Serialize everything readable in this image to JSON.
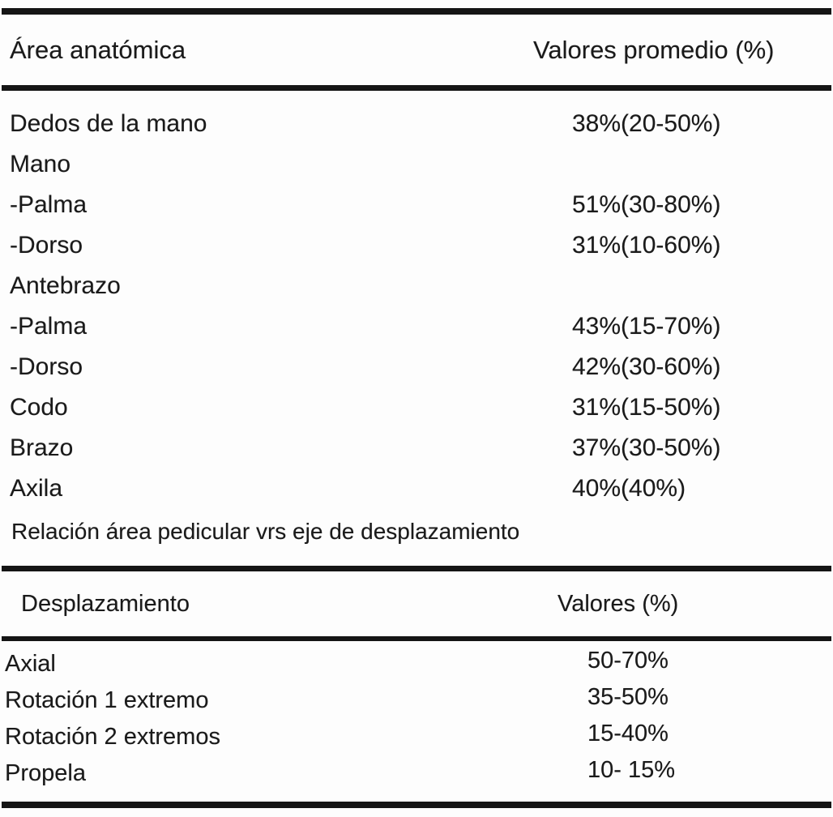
{
  "page": {
    "background_color": "#fdfdfd",
    "text_color": "#1a1a1a",
    "rule_color": "#151515"
  },
  "table1": {
    "header": {
      "col1": "Área anatómica",
      "col2": "Valores promedio (%)"
    },
    "rows": [
      {
        "label": "Dedos de la mano",
        "value": "38%(20-50%)"
      },
      {
        "label": "Mano",
        "value": ""
      },
      {
        "label": "-Palma",
        "value": "51%(30-80%)"
      },
      {
        "label": "-Dorso",
        "value": "31%(10-60%)"
      },
      {
        "label": "Antebrazo",
        "value": ""
      },
      {
        "label": "-Palma",
        "value": "43%(15-70%)"
      },
      {
        "label": "-Dorso",
        "value": "42%(30-60%)"
      },
      {
        "label": "Codo",
        "value": "31%(15-50%)"
      },
      {
        "label": "Brazo",
        "value": "37%(30-50%)"
      },
      {
        "label": "Axila",
        "value": "40%(40%)"
      }
    ],
    "footnote": "Relación área pedicular vrs eje de desplazamiento"
  },
  "table2": {
    "header": {
      "col1": "Desplazamiento",
      "col2": "Valores (%)"
    },
    "rows": [
      {
        "label": "Axial",
        "value": "50-70%"
      },
      {
        "label": "Rotación 1 extremo",
        "value": "35-50%"
      },
      {
        "label": "Rotación 2 extremos",
        "value": "15-40%"
      },
      {
        "label": "Propela",
        "value": "10- 15%"
      }
    ]
  },
  "chart_data": {
    "type": "table",
    "tables": [
      {
        "title": "",
        "columns": [
          "Área anatómica",
          "Valores promedio (%)"
        ],
        "rows": [
          [
            "Dedos de la mano",
            "38%(20-50%)"
          ],
          [
            "Mano",
            ""
          ],
          [
            "-Palma",
            "51%(30-80%)"
          ],
          [
            "-Dorso",
            "31%(10-60%)"
          ],
          [
            "Antebrazo",
            ""
          ],
          [
            "-Palma",
            "43%(15-70%)"
          ],
          [
            "-Dorso",
            "42%(30-60%)"
          ],
          [
            "Codo",
            "31%(15-50%)"
          ],
          [
            "Brazo",
            "37%(30-50%)"
          ],
          [
            "Axila",
            "40%(40%)"
          ]
        ],
        "footnote": "Relación área pedicular vrs eje de desplazamiento"
      },
      {
        "title": "",
        "columns": [
          "Desplazamiento",
          "Valores (%)"
        ],
        "rows": [
          [
            "Axial",
            "50-70%"
          ],
          [
            "Rotación 1 extremo",
            "35-50%"
          ],
          [
            "Rotación 2 extremos",
            "15-40%"
          ],
          [
            "Propela",
            "10- 15%"
          ]
        ]
      }
    ]
  }
}
